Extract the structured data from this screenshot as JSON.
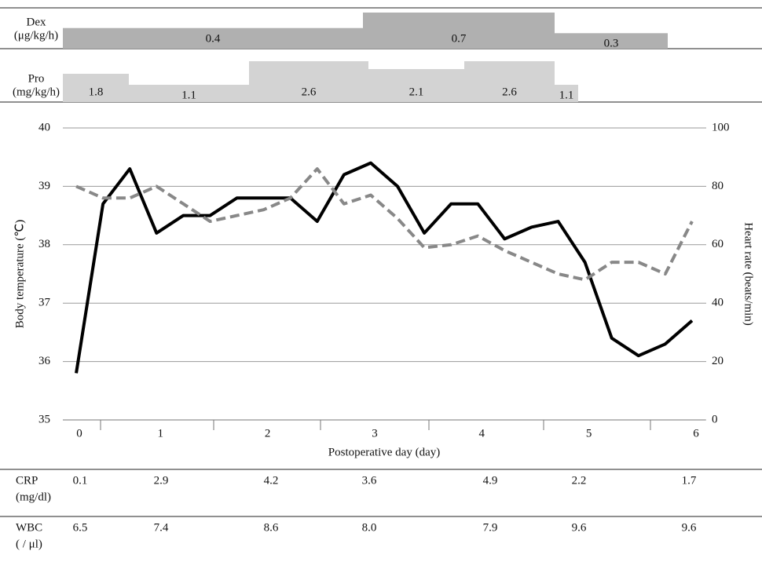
{
  "chart_data": {
    "type": "line",
    "dex": {
      "label": "Dex",
      "unit": "(μg/kg/h)",
      "values": [
        0.4,
        0.7,
        0.3
      ],
      "color": "#b0b0b0"
    },
    "pro": {
      "label": "Pro",
      "unit": "(mg/kg/h)",
      "values": [
        1.8,
        1.1,
        2.6,
        2.1,
        2.6,
        1.1
      ],
      "color": "#d3d3d3"
    },
    "categories": [
      "0",
      null,
      null,
      "1",
      null,
      null,
      null,
      "2",
      null,
      null,
      null,
      "3",
      null,
      null,
      null,
      "4",
      null,
      null,
      null,
      "5",
      null,
      null,
      null,
      "6"
    ],
    "xlabel": "Postoperative day  (day)",
    "ylabel": "Body temperature (℃)",
    "y2label": "Heart rate (beats/min)",
    "ylim": [
      35,
      40
    ],
    "yticks": [
      35,
      36,
      37,
      38,
      39,
      40
    ],
    "y2lim": [
      0,
      100
    ],
    "y2ticks": [
      0,
      20,
      40,
      60,
      80,
      100
    ],
    "grid": true,
    "series": [
      {
        "color": "#000000",
        "dash": false,
        "values": [
          35.8,
          38.7,
          39.3,
          38.2,
          38.5,
          38.5,
          38.8,
          38.8,
          38.8,
          38.4,
          39.2,
          39.4,
          39.0,
          38.2,
          38.7,
          38.7,
          38.1,
          38.3,
          38.4,
          37.7,
          36.4,
          36.1,
          36.3,
          36.7
        ]
      },
      {
        "color": "#888888",
        "dash": true,
        "axis": "y2",
        "values": [
          80,
          76,
          76,
          80,
          74,
          68,
          70,
          72,
          76,
          86,
          74,
          77,
          69,
          59,
          60,
          63,
          58,
          54,
          50,
          48,
          54,
          54,
          50,
          68
        ]
      }
    ],
    "tables": [
      {
        "label": "CRP",
        "unit": "(mg/dl)",
        "values": [
          "0.1",
          "2.9",
          "4.2",
          "3.6",
          "4.9",
          "2.2",
          "1.7"
        ]
      },
      {
        "label": "WBC",
        "unit": "( / μl)",
        "values": [
          "6.5",
          "7.4",
          "8.6",
          "8.0",
          "7.9",
          "9.6",
          "9.6"
        ]
      }
    ]
  }
}
